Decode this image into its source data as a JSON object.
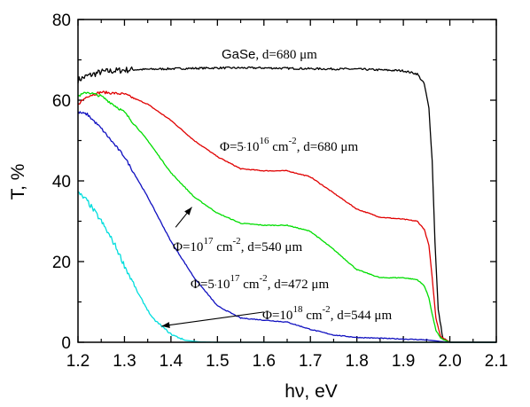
{
  "chart_data": {
    "type": "line",
    "title": "",
    "xlabel": "hν, eV",
    "ylabel": "T, %",
    "xlim": [
      1.2,
      2.1
    ],
    "ylim": [
      0,
      80
    ],
    "x_ticks": [
      "1.2",
      "1.3",
      "1.4",
      "1.5",
      "1.6",
      "1.7",
      "1.8",
      "1.9",
      "2.0",
      "2.1"
    ],
    "y_ticks": [
      "0",
      "20",
      "40",
      "60",
      "80"
    ],
    "grid": false,
    "legend": "none",
    "series": [
      {
        "color": "#000000",
        "noise": 1.0,
        "x": [
          1.2,
          1.22,
          1.25,
          1.3,
          1.4,
          1.5,
          1.6,
          1.7,
          1.8,
          1.9,
          1.93,
          1.945,
          1.955,
          1.962,
          1.968,
          1.975,
          1.985,
          2.0,
          2.1
        ],
        "y": [
          65,
          66,
          67,
          67.5,
          67.8,
          68,
          68,
          67.8,
          67.7,
          67.3,
          66.5,
          64,
          58,
          45,
          25,
          8,
          1,
          0,
          0
        ]
      },
      {
        "color": "#e00000",
        "noise": 0.4,
        "x": [
          1.2,
          1.22,
          1.25,
          1.3,
          1.35,
          1.4,
          1.45,
          1.5,
          1.55,
          1.6,
          1.65,
          1.7,
          1.75,
          1.8,
          1.85,
          1.9,
          1.93,
          1.945,
          1.955,
          1.962,
          1.97,
          1.98,
          2.0,
          2.1
        ],
        "y": [
          59,
          61,
          62,
          61.5,
          59,
          55,
          50,
          46,
          43,
          42.5,
          42.5,
          41,
          37,
          33,
          31,
          30.5,
          30,
          28,
          24,
          16,
          6,
          1.5,
          0,
          0
        ]
      },
      {
        "color": "#00dd00",
        "noise": 0.4,
        "x": [
          1.2,
          1.22,
          1.25,
          1.3,
          1.35,
          1.4,
          1.45,
          1.5,
          1.55,
          1.6,
          1.65,
          1.7,
          1.75,
          1.8,
          1.85,
          1.9,
          1.93,
          1.945,
          1.955,
          1.962,
          1.97,
          1.98,
          2.0,
          2.1
        ],
        "y": [
          61,
          62,
          61,
          57,
          50,
          42,
          36,
          32,
          29.5,
          29,
          29,
          27.5,
          23,
          18,
          16,
          16,
          15.5,
          14,
          11,
          7,
          3,
          1,
          0,
          0
        ]
      },
      {
        "color": "#1010c0",
        "noise": 0.4,
        "x": [
          1.2,
          1.22,
          1.25,
          1.3,
          1.35,
          1.4,
          1.45,
          1.5,
          1.55,
          1.6,
          1.65,
          1.7,
          1.75,
          1.8,
          1.85,
          1.9,
          1.95,
          1.98,
          2.0,
          2.1
        ],
        "y": [
          57,
          56.5,
          53,
          46,
          36,
          25,
          16,
          9,
          6,
          5.5,
          5,
          3.2,
          1.8,
          1.2,
          1.0,
          0.8,
          0.6,
          0.2,
          0,
          0
        ]
      },
      {
        "color": "#00dddd",
        "noise": 0.8,
        "x": [
          1.2,
          1.22,
          1.25,
          1.28,
          1.3,
          1.33,
          1.36,
          1.4,
          1.43,
          1.46,
          1.5,
          1.6,
          2.1
        ],
        "y": [
          37,
          35,
          30,
          24,
          19,
          12,
          6,
          2,
          0.5,
          0.1,
          0,
          0,
          0
        ]
      }
    ],
    "annotations": [
      {
        "text": "GaSe, d=680 μm",
        "x": 1.52,
        "y": 69
      },
      {
        "text": "Φ=5·10^16 cm^-2, d=680 μm",
        "x": 1.54,
        "y": 45
      },
      {
        "text": "Φ=10^17 cm^-2, d=540 μm",
        "x": 1.41,
        "y": 27
      },
      {
        "text": "Φ=5·10^17 cm^-2, d=472 μm",
        "x": 1.48,
        "y": 16
      },
      {
        "text": "Φ=10^18 cm^-2, d=544 μm",
        "x": 1.62,
        "y": 7
      }
    ],
    "arrows": [
      {
        "from": [
          1.41,
          28.5
        ],
        "to": [
          1.445,
          33.5
        ]
      },
      {
        "from": [
          1.6,
          7.5
        ],
        "to": [
          1.38,
          4
        ]
      }
    ]
  }
}
